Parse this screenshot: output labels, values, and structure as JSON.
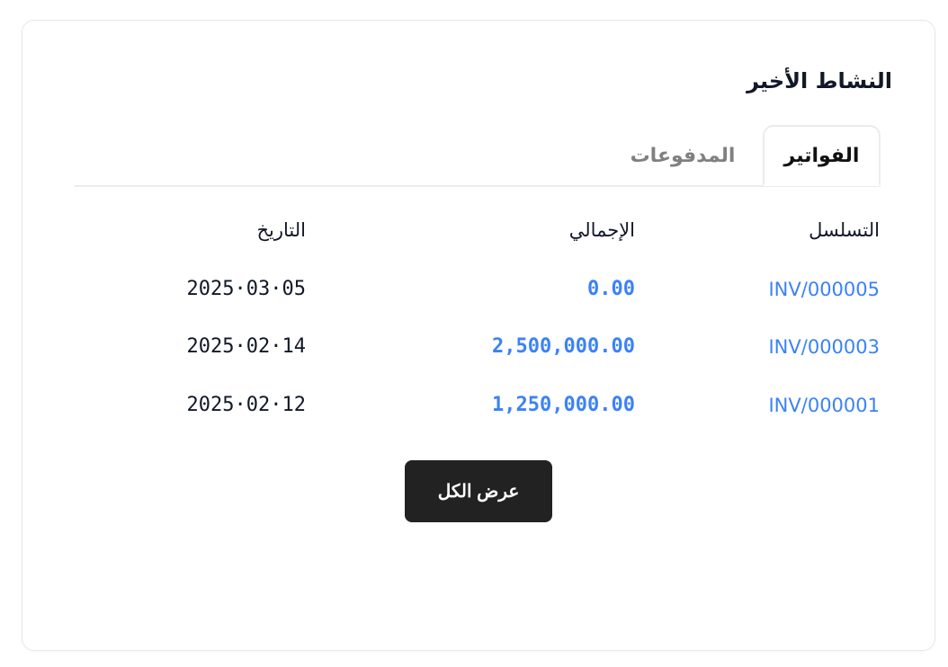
{
  "card": {
    "title": "النشاط الأخير",
    "tabs": [
      {
        "label": "الفواتير",
        "active": true
      },
      {
        "label": "المدفوعات",
        "active": false
      }
    ],
    "table": {
      "headers": {
        "serial": "التسلسل",
        "total": "الإجمالي",
        "date": "التاريخ"
      },
      "rows": [
        {
          "serial": "INV/000005",
          "total": "0.00",
          "date": "2025·03·05"
        },
        {
          "serial": "INV/000003",
          "total": "2,500,000.00",
          "date": "2025·02·14"
        },
        {
          "serial": "INV/000001",
          "total": "1,250,000.00",
          "date": "2025·02·12"
        }
      ]
    },
    "view_all_label": "عرض الكل"
  },
  "colors": {
    "accent": "#3b82f6",
    "button": "#222223",
    "text": "#111827"
  }
}
